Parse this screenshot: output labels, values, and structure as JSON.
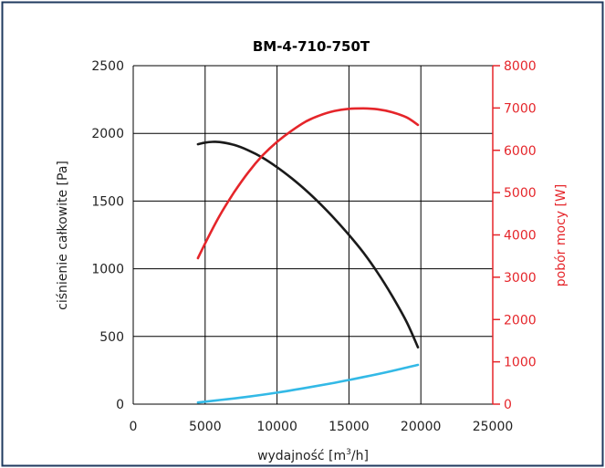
{
  "chart_data": {
    "type": "line",
    "title": "BM-4-710-750T",
    "xlabel": "wydajność [m",
    "xlabel_sup": "3",
    "xlabel_end": "/h]",
    "ylabel_left": "ciśnienie całkowite [Pa]",
    "ylabel_right": "pobór mocy [W]",
    "xlim": [
      0,
      25000
    ],
    "ylim_left": [
      0,
      2500
    ],
    "ylim_right": [
      0,
      8000
    ],
    "x_ticks": [
      "0",
      "5000",
      "10000",
      "15000",
      "20000",
      "25000"
    ],
    "y_left_ticks": [
      "0",
      "500",
      "1000",
      "1500",
      "2000",
      "2500"
    ],
    "y_right_ticks": [
      "0",
      "1000",
      "2000",
      "3000",
      "4000",
      "5000",
      "6000",
      "7000",
      "8000"
    ],
    "grid": true,
    "series": [
      {
        "axis": "left",
        "color": "#1a1a1a",
        "x": [
          4500,
          5000,
          5500,
          6000,
          7000,
          8000,
          9000,
          10000,
          11000,
          12000,
          13000,
          14000,
          15000,
          16000,
          17000,
          18000,
          19000,
          19800
        ],
        "y": [
          1920,
          1932,
          1937,
          1936,
          1915,
          1875,
          1820,
          1750,
          1670,
          1580,
          1480,
          1370,
          1250,
          1120,
          970,
          800,
          610,
          420
        ]
      },
      {
        "axis": "right",
        "color": "#e5252a",
        "x": [
          4500,
          5000,
          6000,
          7000,
          8000,
          9000,
          10000,
          11000,
          12000,
          13000,
          14000,
          15000,
          16000,
          17000,
          18000,
          19000,
          19800
        ],
        "y": [
          3450,
          3800,
          4450,
          5000,
          5480,
          5880,
          6200,
          6460,
          6680,
          6830,
          6930,
          6980,
          6990,
          6970,
          6900,
          6780,
          6600
        ]
      },
      {
        "axis": "left",
        "color": "#33b9e6",
        "x": [
          4500,
          6000,
          8000,
          10000,
          12000,
          14000,
          16000,
          18000,
          19800
        ],
        "y": [
          12,
          30,
          55,
          85,
          120,
          158,
          200,
          245,
          290
        ]
      }
    ]
  },
  "colors": {
    "frame": "#1f3a5f",
    "axis_left": "#1a1a1a",
    "axis_right": "#e5252a",
    "grid": "#000000"
  }
}
